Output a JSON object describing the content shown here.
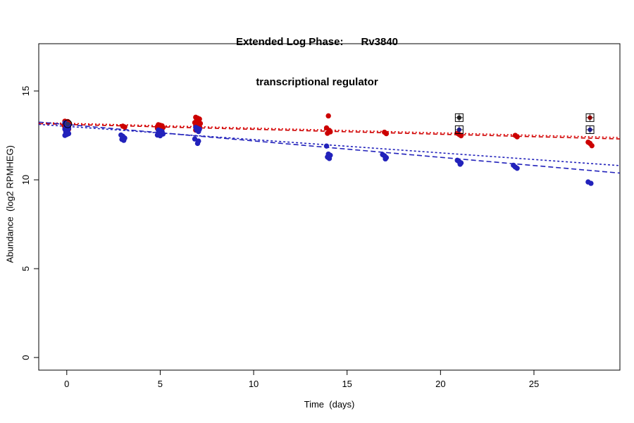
{
  "chart_data": {
    "type": "scatter",
    "title": "Extended Log Phase:      Rv3840",
    "subtitle": "transcriptional regulator",
    "xlabel": "Time  (days)",
    "ylabel": "Abundance  (log2 RPMHEG)",
    "xlim": [
      -1.5,
      29.6
    ],
    "ylim": [
      -0.71,
      17.66
    ],
    "xticks": [
      0,
      5,
      10,
      15,
      20,
      25
    ],
    "yticks": [
      0,
      5,
      10,
      15
    ],
    "grid": false,
    "legend": "none",
    "colors": {
      "red_series": "#cc0000",
      "blue_series": "#2222bb",
      "highlight_stroke": "#000000"
    },
    "series": [
      {
        "name": "red-condition",
        "color": "#cc0000",
        "points": [
          [
            -0.1,
            13.3
          ],
          [
            0.05,
            13.28
          ],
          [
            0.1,
            13.22
          ],
          [
            -0.05,
            13.18
          ],
          [
            0.15,
            13.15
          ],
          [
            0.0,
            13.1
          ],
          [
            -0.15,
            13.08
          ],
          [
            0.05,
            13.02
          ],
          [
            0.1,
            12.98
          ],
          [
            -0.1,
            12.95
          ],
          [
            0.0,
            12.9
          ],
          [
            0.1,
            12.85
          ],
          [
            -0.05,
            12.72
          ],
          [
            0.05,
            12.6
          ],
          [
            3.0,
            13.02
          ],
          [
            3.1,
            12.97
          ],
          [
            4.9,
            13.1
          ],
          [
            5.0,
            13.07
          ],
          [
            5.1,
            13.04
          ],
          [
            4.95,
            13.0
          ],
          [
            5.05,
            12.98
          ],
          [
            5.15,
            12.94
          ],
          [
            4.85,
            12.9
          ],
          [
            5.0,
            12.88
          ],
          [
            6.9,
            13.52
          ],
          [
            7.0,
            13.47
          ],
          [
            7.1,
            13.42
          ],
          [
            6.95,
            13.36
          ],
          [
            7.05,
            13.3
          ],
          [
            6.85,
            13.22
          ],
          [
            7.15,
            13.17
          ],
          [
            7.0,
            13.1
          ],
          [
            6.9,
            13.05
          ],
          [
            7.1,
            13.0
          ],
          [
            6.95,
            12.95
          ],
          [
            7.05,
            12.9
          ],
          [
            7.0,
            12.85
          ],
          [
            6.9,
            12.8
          ],
          [
            14.0,
            13.6
          ],
          [
            13.9,
            12.92
          ],
          [
            14.05,
            12.78
          ],
          [
            14.1,
            12.7
          ],
          [
            13.95,
            12.62
          ],
          [
            17.0,
            12.68
          ],
          [
            17.1,
            12.6
          ],
          [
            20.9,
            12.62
          ],
          [
            21.0,
            12.55
          ],
          [
            21.1,
            12.48
          ],
          [
            24.0,
            12.5
          ],
          [
            24.1,
            12.42
          ],
          [
            27.9,
            12.12
          ],
          [
            28.0,
            12.05
          ],
          [
            28.1,
            11.92
          ]
        ]
      },
      {
        "name": "blue-condition",
        "color": "#2222bb",
        "points": [
          [
            -0.1,
            13.2
          ],
          [
            0.0,
            13.12
          ],
          [
            0.1,
            13.05
          ],
          [
            -0.05,
            13.0
          ],
          [
            0.05,
            12.95
          ],
          [
            0.1,
            12.9
          ],
          [
            -0.1,
            12.85
          ],
          [
            0.0,
            12.8
          ],
          [
            0.05,
            12.75
          ],
          [
            -0.05,
            12.68
          ],
          [
            0.1,
            12.6
          ],
          [
            0.0,
            12.55
          ],
          [
            -0.1,
            12.5
          ],
          [
            2.9,
            12.52
          ],
          [
            3.0,
            12.45
          ],
          [
            3.1,
            12.35
          ],
          [
            2.95,
            12.28
          ],
          [
            3.05,
            12.22
          ],
          [
            4.9,
            12.8
          ],
          [
            5.0,
            12.76
          ],
          [
            5.1,
            12.72
          ],
          [
            4.95,
            12.68
          ],
          [
            5.05,
            12.62
          ],
          [
            5.15,
            12.58
          ],
          [
            4.85,
            12.52
          ],
          [
            5.0,
            12.48
          ],
          [
            6.9,
            12.95
          ],
          [
            7.0,
            12.9
          ],
          [
            7.1,
            12.85
          ],
          [
            6.95,
            12.8
          ],
          [
            7.05,
            12.72
          ],
          [
            6.85,
            12.3
          ],
          [
            7.05,
            12.18
          ],
          [
            7.0,
            12.05
          ],
          [
            13.9,
            11.9
          ],
          [
            14.0,
            11.45
          ],
          [
            14.1,
            11.38
          ],
          [
            13.95,
            11.28
          ],
          [
            14.05,
            11.2
          ],
          [
            16.9,
            11.42
          ],
          [
            17.0,
            11.35
          ],
          [
            17.1,
            11.25
          ],
          [
            17.05,
            11.18
          ],
          [
            20.9,
            11.1
          ],
          [
            21.0,
            11.02
          ],
          [
            21.1,
            10.95
          ],
          [
            21.05,
            10.88
          ],
          [
            23.9,
            10.82
          ],
          [
            24.0,
            10.72
          ],
          [
            24.1,
            10.65
          ],
          [
            27.9,
            9.88
          ],
          [
            28.05,
            9.8
          ]
        ]
      }
    ],
    "highlighted_points": [
      {
        "x": 0.05,
        "y": 13.15,
        "shape": "circle",
        "color": "#333366"
      },
      {
        "x": 21.0,
        "y": 13.5,
        "shape": "square",
        "color": "#222222"
      },
      {
        "x": 21.0,
        "y": 12.82,
        "shape": "square",
        "color": "#1a1a8c"
      },
      {
        "x": 28.0,
        "y": 13.5,
        "shape": "square",
        "color": "#8b0000"
      },
      {
        "x": 28.0,
        "y": 12.82,
        "shape": "square",
        "color": "#1a1a8c"
      }
    ],
    "trend_lines": [
      {
        "name": "red-fit-1",
        "color": "#dd0000",
        "dash": "2,3",
        "x0": -1.5,
        "y0": 13.22,
        "x1": 29.6,
        "y1": 12.38
      },
      {
        "name": "red-fit-2",
        "color": "#cc0000",
        "dash": "6,4",
        "x0": -1.5,
        "y0": 13.16,
        "x1": 29.6,
        "y1": 12.3
      },
      {
        "name": "blue-fit-1",
        "color": "#2222bb",
        "dash": "7,4",
        "x0": -1.5,
        "y0": 13.25,
        "x1": 29.6,
        "y1": 10.38
      },
      {
        "name": "blue-fit-2",
        "color": "#2222bb",
        "dash": "3,3",
        "x0": -1.5,
        "y0": 13.12,
        "x1": 29.6,
        "y1": 10.8
      }
    ]
  }
}
